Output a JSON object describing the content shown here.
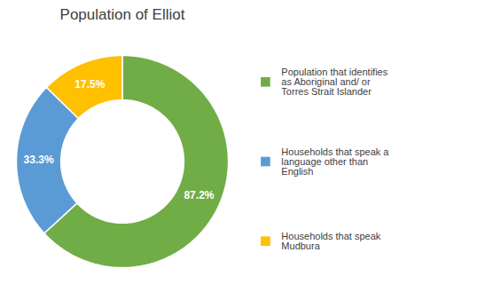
{
  "chart_data": {
    "type": "pie",
    "title": "Population of Elliot",
    "categories": [
      "Population that identifies\nas Aboriginal and/ or\nTorres Strait Islander",
      "Households that speak a\nlanguage other than\nEnglish",
      "Households that speak\nMudbura"
    ],
    "values": [
      87.2,
      33.3,
      17.5
    ],
    "value_labels": [
      "87.2%",
      "33.3%",
      "17.5%"
    ],
    "colors": [
      "#70AD47",
      "#5B9BD5",
      "#FFC000"
    ],
    "data_labels": true,
    "legend": "right"
  }
}
